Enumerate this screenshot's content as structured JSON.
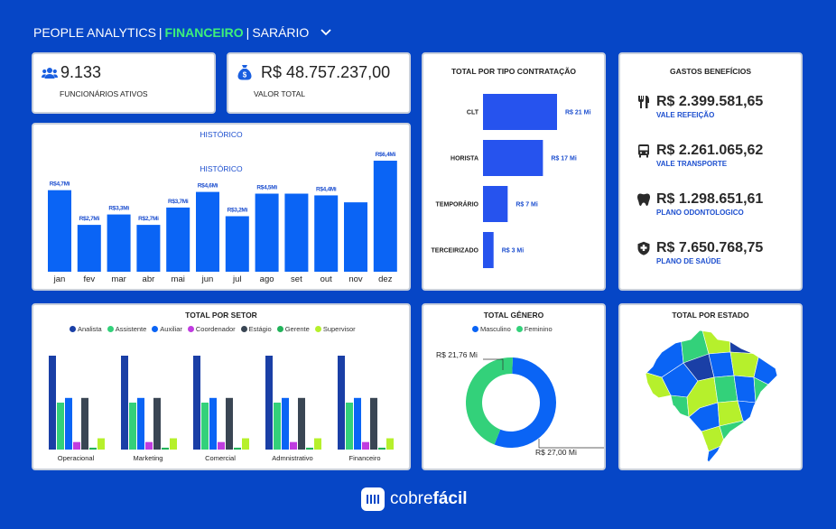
{
  "header": {
    "part1": "PEOPLE ANALYTICS",
    "sep1": "|",
    "part2": "FINANCEIRO",
    "sep2": "|",
    "part3": "SARÁRIO",
    "accent_color": "#3ef07a",
    "background_color": "#0646c6"
  },
  "kpis": {
    "employees": {
      "value": "9.133",
      "label": "FUNCIONÁRIOS ATIVOS",
      "icon": "users-icon"
    },
    "total": {
      "value": "R$ 48.757.237,00",
      "label": "VALOR TOTAL",
      "icon": "money-bag-icon"
    }
  },
  "historico": {
    "title_outer": "HISTÓRICO",
    "title_inner": "HISTÓRICO",
    "bar_color": "#0a64f5",
    "chart_data": {
      "type": "bar",
      "title": "HISTÓRICO",
      "categories": [
        "jan",
        "fev",
        "mar",
        "abr",
        "mai",
        "jun",
        "jul",
        "ago",
        "set",
        "out",
        "nov",
        "dez"
      ],
      "values": [
        4.7,
        2.7,
        3.3,
        2.7,
        3.7,
        4.6,
        3.2,
        4.5,
        4.5,
        4.4,
        4.0,
        6.4
      ],
      "labels": [
        "R$4,7Mi",
        "R$2,7Mi",
        "R$3,3Mi",
        "R$2,7Mi",
        "R$3,7Mi",
        "R$4,6Mi",
        "R$3,2Mi",
        "R$4,5Mi",
        "",
        "R$4,4Mi",
        "",
        "R$6,4Mi"
      ],
      "ylim": [
        0,
        6.4
      ]
    }
  },
  "contratacao": {
    "title": "TOTAL POR TIPO CONTRATAÇÃO",
    "bar_color": "#2653ee",
    "chart_data": {
      "type": "bar",
      "orientation": "horizontal",
      "categories": [
        "CLT",
        "HORISTA",
        "TEMPORÁRIO",
        "TERCEIRIZADO"
      ],
      "values": [
        21,
        17,
        7,
        3
      ],
      "labels": [
        "R$ 21 Mi",
        "R$ 17 Mi",
        "R$ 7 Mi",
        "R$ 3 Mi"
      ],
      "xlim": [
        0,
        21
      ]
    }
  },
  "beneficios": {
    "title": "GASTOS BENEFÍCIOS",
    "items": [
      {
        "value": "R$ 2.399.581,65",
        "label": "VALE REFEIÇÃO",
        "icon": "utensils-icon"
      },
      {
        "value": "R$ 2.261.065,62",
        "label": "VALE TRANSPORTE",
        "icon": "bus-icon"
      },
      {
        "value": "R$ 1.298.651,61",
        "label": "PLANO ODONTOLOGICO",
        "icon": "tooth-icon"
      },
      {
        "value": "R$ 7.650.768,75",
        "label": "PLANO DE SAÚDE",
        "icon": "health-shield-icon"
      }
    ]
  },
  "setor": {
    "title": "TOTAL POR SETOR",
    "chart_data": {
      "type": "bar",
      "categories": [
        "Operacional",
        "Marketing",
        "Comercial",
        "Administrativo",
        "Financeiro"
      ],
      "category_labels": [
        "Operacional",
        "Marketing",
        "Comercial",
        "Admnistrativo",
        "Financeiro"
      ],
      "series": [
        {
          "name": "Analista",
          "color": "#1a3fa6",
          "values": [
            100,
            100,
            100,
            100,
            100
          ]
        },
        {
          "name": "Assistente",
          "color": "#33d17a",
          "values": [
            50,
            50,
            50,
            50,
            50
          ]
        },
        {
          "name": "Auxiliar",
          "color": "#0a64f5",
          "values": [
            55,
            55,
            55,
            55,
            55
          ]
        },
        {
          "name": "Coordenador",
          "color": "#c03ce0",
          "values": [
            8,
            8,
            8,
            8,
            8
          ]
        },
        {
          "name": "Estágio",
          "color": "#3a4654",
          "values": [
            55,
            55,
            55,
            55,
            55
          ]
        },
        {
          "name": "Gerente",
          "color": "#22b35a",
          "values": [
            2,
            2,
            2,
            2,
            2
          ]
        },
        {
          "name": "Supervisor",
          "color": "#b6f02c",
          "values": [
            12,
            12,
            12,
            12,
            12
          ]
        }
      ],
      "ylim": [
        0,
        100
      ]
    }
  },
  "genero": {
    "title": "TOTAL GÊNERO",
    "chart_data": {
      "type": "pie",
      "donut": true,
      "labels": [
        "Masculino",
        "Feminino"
      ],
      "values": [
        27.0,
        21.76
      ],
      "value_labels": [
        "R$ 27,00 Mi",
        "R$ 21,76 Mi"
      ],
      "colors": [
        "#0a64f5",
        "#33d17a"
      ]
    }
  },
  "estado": {
    "title": "TOTAL POR ESTADO",
    "map_colors": [
      "#0a64f5",
      "#33d17a",
      "#b6f02c",
      "#1a3fa6"
    ]
  },
  "footer": {
    "brand_normal": "cobre",
    "brand_bold": "fácil"
  }
}
